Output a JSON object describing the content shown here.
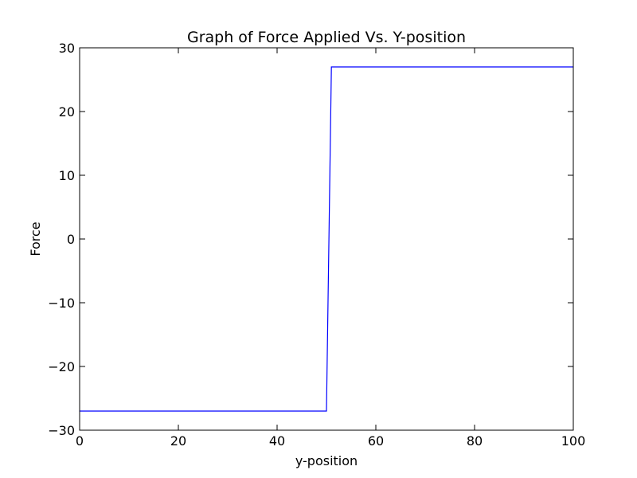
{
  "chart_data": {
    "type": "line",
    "title": "Graph of Force Applied Vs. Y-position",
    "xlabel": "y-position",
    "ylabel": "Force",
    "xlim": [
      0,
      100
    ],
    "ylim": [
      -30,
      30
    ],
    "x_ticks": [
      0,
      20,
      40,
      60,
      80,
      100
    ],
    "y_ticks": [
      -30,
      -20,
      -10,
      0,
      10,
      20,
      30
    ],
    "x_tick_labels": [
      "0",
      "20",
      "40",
      "60",
      "80",
      "100"
    ],
    "y_tick_labels": [
      "−30",
      "−20",
      "−10",
      "0",
      "10",
      "20",
      "30"
    ],
    "grid": false,
    "series": [
      {
        "color": "#0000ff",
        "x": [
          0,
          50,
          51,
          100
        ],
        "y": [
          -27,
          -27,
          27,
          27
        ]
      }
    ]
  }
}
